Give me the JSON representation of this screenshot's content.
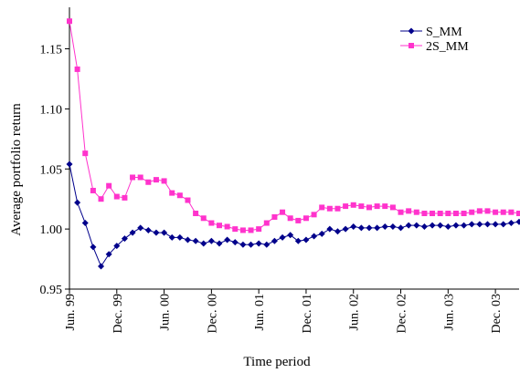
{
  "chart_data": {
    "type": "line",
    "title": "",
    "xlabel": "Time period",
    "ylabel": "Average portfolio return",
    "ylim": [
      0.95,
      1.18
    ],
    "yticks": [
      "0.95",
      "1.00",
      "1.05",
      "1.10",
      "1.15"
    ],
    "ytick_values": [
      0.95,
      1.0,
      1.05,
      1.1,
      1.15
    ],
    "xticks": [
      "Jun. 99",
      "Dec. 99",
      "Jun. 00",
      "Dec. 00",
      "Jun. 01",
      "Dec. 01",
      "Jun. 02",
      "Dec. 02",
      "Jun. 03",
      "Dec. 03"
    ],
    "xtick_positions": [
      0,
      6,
      12,
      18,
      24,
      30,
      36,
      42,
      48,
      54
    ],
    "x": [
      "Jun. 99",
      "Jul. 99",
      "Aug. 99",
      "Sep. 99",
      "Oct. 99",
      "Nov. 99",
      "Dec. 99",
      "Jan. 00",
      "Feb. 00",
      "Mar. 00",
      "Apr. 00",
      "May 00",
      "Jun. 00",
      "Jul. 00",
      "Aug. 00",
      "Sep. 00",
      "Oct. 00",
      "Nov. 00",
      "Dec. 00",
      "Jan. 01",
      "Feb. 01",
      "Mar. 01",
      "Apr. 01",
      "May 01",
      "Jun. 01",
      "Jul. 01",
      "Aug. 01",
      "Sep. 01",
      "Oct. 01",
      "Nov. 01",
      "Dec. 01",
      "Jan. 02",
      "Feb. 02",
      "Mar. 02",
      "Apr. 02",
      "May 02",
      "Jun. 02",
      "Jul. 02",
      "Aug. 02",
      "Sep. 02",
      "Oct. 02",
      "Nov. 02",
      "Dec. 02",
      "Jan. 03",
      "Feb. 03",
      "Mar. 03",
      "Apr. 03",
      "May 03",
      "Jun. 03",
      "Jul. 03",
      "Aug. 03",
      "Sep. 03",
      "Oct. 03",
      "Nov. 03",
      "Dec. 03",
      "Jan. 04",
      "Feb. 04",
      "Mar. 04"
    ],
    "grid": false,
    "legend_position": "top-right",
    "series": [
      {
        "name": "S_MM",
        "color": "#00008b",
        "marker": "diamond",
        "values": [
          1.054,
          1.022,
          1.005,
          0.985,
          0.969,
          0.979,
          0.986,
          0.992,
          0.997,
          1.001,
          0.999,
          0.997,
          0.997,
          0.993,
          0.993,
          0.991,
          0.99,
          0.988,
          0.99,
          0.988,
          0.991,
          0.989,
          0.987,
          0.987,
          0.988,
          0.987,
          0.99,
          0.993,
          0.995,
          0.99,
          0.991,
          0.994,
          0.996,
          1.0,
          0.998,
          1.0,
          1.002,
          1.001,
          1.001,
          1.001,
          1.002,
          1.002,
          1.001,
          1.003,
          1.003,
          1.002,
          1.003,
          1.003,
          1.002,
          1.003,
          1.003,
          1.004,
          1.004,
          1.004,
          1.004,
          1.004,
          1.005,
          1.006
        ]
      },
      {
        "name": "2S_MM",
        "color": "#ff33cc",
        "marker": "square",
        "values": [
          1.173,
          1.133,
          1.063,
          1.032,
          1.025,
          1.036,
          1.027,
          1.026,
          1.043,
          1.043,
          1.039,
          1.041,
          1.04,
          1.03,
          1.028,
          1.024,
          1.013,
          1.009,
          1.005,
          1.003,
          1.002,
          1.0,
          0.999,
          0.999,
          1.0,
          1.005,
          1.01,
          1.014,
          1.009,
          1.007,
          1.009,
          1.012,
          1.018,
          1.017,
          1.017,
          1.019,
          1.02,
          1.019,
          1.018,
          1.019,
          1.019,
          1.018,
          1.014,
          1.015,
          1.014,
          1.013,
          1.013,
          1.013,
          1.013,
          1.013,
          1.013,
          1.014,
          1.015,
          1.015,
          1.014,
          1.014,
          1.014,
          1.013
        ]
      }
    ]
  }
}
